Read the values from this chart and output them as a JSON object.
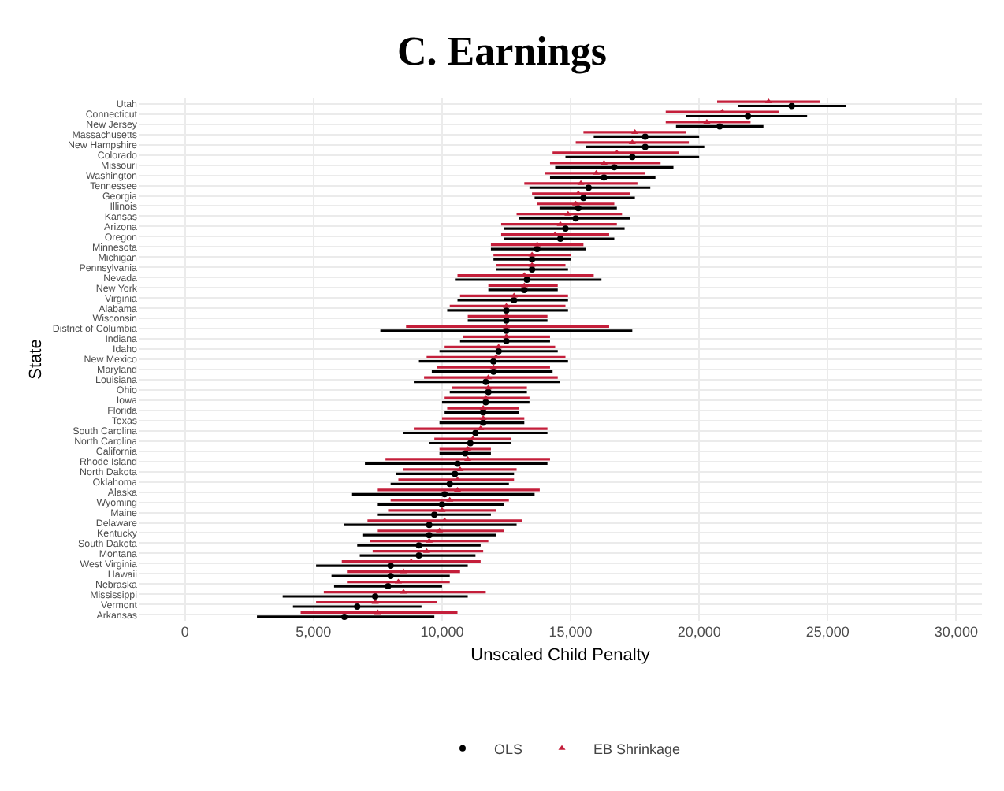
{
  "chart_data": {
    "type": "scatter",
    "orientation": "horizontal",
    "title": "C. Earnings",
    "xlabel": "Unscaled Child Penalty",
    "ylabel": "State",
    "categories": [
      "Utah",
      "Connecticut",
      "New Jersey",
      "Massachusetts",
      "New Hampshire",
      "Colorado",
      "Missouri",
      "Washington",
      "Tennessee",
      "Georgia",
      "Illinois",
      "Kansas",
      "Arizona",
      "Oregon",
      "Minnesota",
      "Michigan",
      "Pennsylvania",
      "Nevada",
      "New York",
      "Virginia",
      "Alabama",
      "Wisconsin",
      "District of Columbia",
      "Indiana",
      "Idaho",
      "New Mexico",
      "Maryland",
      "Louisiana",
      "Ohio",
      "Iowa",
      "Florida",
      "Texas",
      "South Carolina",
      "North Carolina",
      "California",
      "Rhode Island",
      "North Dakota",
      "Oklahoma",
      "Alaska",
      "Wyoming",
      "Maine",
      "Delaware",
      "Kentucky",
      "South Dakota",
      "Montana",
      "West Virginia",
      "Hawaii",
      "Nebraska",
      "Mississippi",
      "Vermont",
      "Arkansas"
    ],
    "xlim": [
      -1800,
      31000
    ],
    "xticks": [
      {
        "value": 0,
        "label": "0"
      },
      {
        "value": 5000,
        "label": "5,000"
      },
      {
        "value": 10000,
        "label": "10,000"
      },
      {
        "value": 15000,
        "label": "15,000"
      },
      {
        "value": 20000,
        "label": "20,000"
      },
      {
        "value": 25000,
        "label": "25,000"
      },
      {
        "value": 30000,
        "label": "30,000"
      }
    ],
    "grid": true,
    "legend": "bottom",
    "series": [
      {
        "name": "OLS",
        "color": "#000000",
        "marker": "circle",
        "values": [
          23600,
          21900,
          20800,
          17900,
          17900,
          17400,
          16700,
          16300,
          15700,
          15500,
          15300,
          15200,
          14800,
          14600,
          13700,
          13500,
          13500,
          13300,
          13200,
          12800,
          12500,
          12500,
          12500,
          12500,
          12200,
          12000,
          12000,
          11700,
          11800,
          11700,
          11600,
          11600,
          11300,
          11100,
          10900,
          10600,
          10500,
          10300,
          10100,
          10000,
          9700,
          9500,
          9500,
          9100,
          9100,
          8000,
          8000,
          7900,
          7400,
          6700,
          6200
        ],
        "errors": [
          [
            21500,
            25700
          ],
          [
            19500,
            24200
          ],
          [
            19100,
            22500
          ],
          [
            15900,
            20000
          ],
          [
            15600,
            20200
          ],
          [
            14800,
            20000
          ],
          [
            14400,
            19000
          ],
          [
            14200,
            18300
          ],
          [
            13400,
            18100
          ],
          [
            13600,
            17500
          ],
          [
            13800,
            16800
          ],
          [
            13000,
            17300
          ],
          [
            12400,
            17100
          ],
          [
            12400,
            16700
          ],
          [
            11900,
            15600
          ],
          [
            12000,
            15000
          ],
          [
            12100,
            14900
          ],
          [
            10500,
            16200
          ],
          [
            11800,
            14500
          ],
          [
            10600,
            14900
          ],
          [
            10200,
            14900
          ],
          [
            11000,
            14100
          ],
          [
            7600,
            17400
          ],
          [
            10700,
            14200
          ],
          [
            9900,
            14500
          ],
          [
            9100,
            14900
          ],
          [
            9600,
            14300
          ],
          [
            8900,
            14600
          ],
          [
            10300,
            13300
          ],
          [
            10000,
            13400
          ],
          [
            10100,
            13000
          ],
          [
            9900,
            13200
          ],
          [
            8500,
            14100
          ],
          [
            9500,
            12700
          ],
          [
            9900,
            11900
          ],
          [
            7000,
            14100
          ],
          [
            8200,
            12800
          ],
          [
            8000,
            12600
          ],
          [
            6500,
            13600
          ],
          [
            7500,
            12400
          ],
          [
            7500,
            11900
          ],
          [
            6200,
            12900
          ],
          [
            6900,
            12100
          ],
          [
            6700,
            11500
          ],
          [
            6800,
            11300
          ],
          [
            5100,
            11000
          ],
          [
            5700,
            10300
          ],
          [
            5800,
            10000
          ],
          [
            3800,
            11000
          ],
          [
            4200,
            9200
          ],
          [
            2800,
            9700
          ]
        ]
      },
      {
        "name": "EB Shrinkage",
        "color": "#c41e3a",
        "marker": "triangle",
        "values": [
          22700,
          20900,
          20300,
          17500,
          17400,
          16800,
          16300,
          16000,
          15400,
          15300,
          15200,
          14900,
          14600,
          14400,
          13700,
          13500,
          13500,
          13200,
          13200,
          12800,
          12500,
          12500,
          12500,
          12500,
          12200,
          12100,
          12000,
          11800,
          11800,
          11700,
          11600,
          11600,
          11500,
          11200,
          11000,
          11000,
          10700,
          10600,
          10600,
          10300,
          10000,
          10100,
          9900,
          9500,
          9400,
          8800,
          8500,
          8300,
          8500,
          7400,
          7500
        ],
        "errors": [
          [
            20700,
            24700
          ],
          [
            18700,
            23100
          ],
          [
            18700,
            22000
          ],
          [
            15500,
            19500
          ],
          [
            15200,
            19600
          ],
          [
            14300,
            19200
          ],
          [
            14200,
            18500
          ],
          [
            14000,
            17900
          ],
          [
            13200,
            17600
          ],
          [
            13500,
            17300
          ],
          [
            13700,
            16700
          ],
          [
            12900,
            17000
          ],
          [
            12300,
            16800
          ],
          [
            12300,
            16500
          ],
          [
            11900,
            15500
          ],
          [
            12000,
            15000
          ],
          [
            12100,
            14800
          ],
          [
            10600,
            15900
          ],
          [
            11800,
            14500
          ],
          [
            10700,
            14900
          ],
          [
            10300,
            14800
          ],
          [
            11000,
            14100
          ],
          [
            8600,
            16500
          ],
          [
            10800,
            14200
          ],
          [
            10100,
            14400
          ],
          [
            9400,
            14800
          ],
          [
            9800,
            14200
          ],
          [
            9300,
            14500
          ],
          [
            10400,
            13300
          ],
          [
            10100,
            13400
          ],
          [
            10200,
            13000
          ],
          [
            10000,
            13200
          ],
          [
            8900,
            14100
          ],
          [
            9700,
            12700
          ],
          [
            9900,
            11900
          ],
          [
            7800,
            14200
          ],
          [
            8500,
            12900
          ],
          [
            8300,
            12800
          ],
          [
            7500,
            13800
          ],
          [
            8000,
            12600
          ],
          [
            7900,
            12100
          ],
          [
            7100,
            13100
          ],
          [
            7500,
            12400
          ],
          [
            7200,
            11800
          ],
          [
            7300,
            11600
          ],
          [
            6100,
            11500
          ],
          [
            6300,
            10700
          ],
          [
            6300,
            10300
          ],
          [
            5400,
            11700
          ],
          [
            5100,
            9800
          ],
          [
            4500,
            10600
          ]
        ]
      }
    ]
  }
}
